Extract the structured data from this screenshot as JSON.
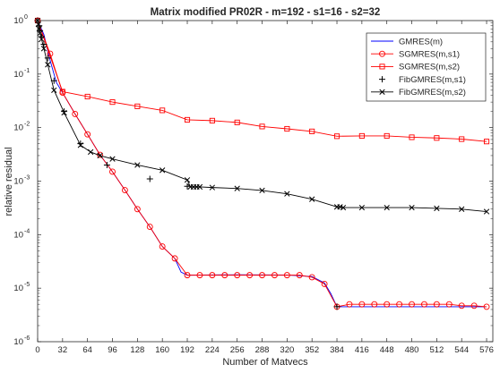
{
  "chart_data": {
    "type": "line",
    "title": "Matrix modified PR02R - m=192 - s1=16 - s2=32",
    "xlabel": "Number of Matvecs",
    "ylabel": "relative residual",
    "xlim": [
      0,
      584
    ],
    "ylim": [
      1e-06,
      1
    ],
    "yscale": "log",
    "x_ticks": [
      0,
      32,
      64,
      96,
      128,
      160,
      192,
      224,
      256,
      288,
      320,
      352,
      384,
      416,
      448,
      480,
      512,
      544,
      576
    ],
    "y_ticks": [
      {
        "value": 1e-06,
        "base": "10",
        "exp": "-6"
      },
      {
        "value": 1e-05,
        "base": "10",
        "exp": "-5"
      },
      {
        "value": 0.0001,
        "base": "10",
        "exp": "-4"
      },
      {
        "value": 0.001,
        "base": "10",
        "exp": "-3"
      },
      {
        "value": 0.01,
        "base": "10",
        "exp": "-2"
      },
      {
        "value": 0.1,
        "base": "10",
        "exp": "-1"
      },
      {
        "value": 1,
        "base": "10",
        "exp": "0"
      }
    ],
    "grid": false,
    "legend_position": "top-right",
    "series": [
      {
        "name": "GMRES(m)",
        "color": "#0000ff",
        "marker": "none",
        "points": [
          [
            0,
            1
          ],
          [
            8,
            0.55
          ],
          [
            16,
            0.18
          ],
          [
            24,
            0.07
          ],
          [
            32,
            0.045
          ],
          [
            48,
            0.018
          ],
          [
            64,
            0.0075
          ],
          [
            80,
            0.0031
          ],
          [
            96,
            0.0015
          ],
          [
            112,
            0.00068
          ],
          [
            128,
            0.0003
          ],
          [
            144,
            0.00014
          ],
          [
            160,
            6e-05
          ],
          [
            176,
            3.6e-05
          ],
          [
            184,
            2e-05
          ],
          [
            192,
            1.75e-05
          ],
          [
            256,
            1.78e-05
          ],
          [
            320,
            1.76e-05
          ],
          [
            352,
            1.65e-05
          ],
          [
            368,
            1.25e-05
          ],
          [
            376,
            8e-06
          ],
          [
            384,
            4.5e-06
          ],
          [
            576,
            4.5e-06
          ]
        ]
      },
      {
        "name": "SGMRES(m,s1)",
        "color": "#ff0000",
        "marker": "circle",
        "points": [
          [
            0,
            1
          ],
          [
            16,
            0.24
          ],
          [
            32,
            0.045
          ],
          [
            48,
            0.018
          ],
          [
            64,
            0.0075
          ],
          [
            80,
            0.0031
          ],
          [
            96,
            0.0015
          ],
          [
            112,
            0.00068
          ],
          [
            128,
            0.0003
          ],
          [
            144,
            0.00014
          ],
          [
            160,
            6e-05
          ],
          [
            176,
            3.6e-05
          ],
          [
            192,
            1.75e-05
          ],
          [
            208,
            1.75e-05
          ],
          [
            224,
            1.75e-05
          ],
          [
            240,
            1.75e-05
          ],
          [
            256,
            1.75e-05
          ],
          [
            272,
            1.75e-05
          ],
          [
            288,
            1.75e-05
          ],
          [
            304,
            1.75e-05
          ],
          [
            320,
            1.75e-05
          ],
          [
            336,
            1.75e-05
          ],
          [
            352,
            1.6e-05
          ],
          [
            368,
            1.2e-05
          ],
          [
            384,
            4.5e-06
          ],
          [
            400,
            5e-06
          ],
          [
            416,
            5e-06
          ],
          [
            432,
            5e-06
          ],
          [
            448,
            5e-06
          ],
          [
            464,
            5e-06
          ],
          [
            480,
            5e-06
          ],
          [
            496,
            5e-06
          ],
          [
            512,
            5e-06
          ],
          [
            528,
            5e-06
          ],
          [
            544,
            4.7e-06
          ],
          [
            560,
            4.7e-06
          ],
          [
            576,
            4.5e-06
          ]
        ]
      },
      {
        "name": "SGMRES(m,s2)",
        "color": "#ff0000",
        "marker": "square",
        "points": [
          [
            0,
            1
          ],
          [
            32,
            0.047
          ],
          [
            64,
            0.038
          ],
          [
            96,
            0.03
          ],
          [
            128,
            0.025
          ],
          [
            160,
            0.021
          ],
          [
            192,
            0.014
          ],
          [
            224,
            0.0135
          ],
          [
            256,
            0.0125
          ],
          [
            288,
            0.0105
          ],
          [
            320,
            0.0095
          ],
          [
            352,
            0.0085
          ],
          [
            384,
            0.0069
          ],
          [
            416,
            0.007
          ],
          [
            448,
            0.007
          ],
          [
            480,
            0.0066
          ],
          [
            512,
            0.0064
          ],
          [
            544,
            0.0061
          ],
          [
            576,
            0.0055
          ]
        ]
      },
      {
        "name": "FibGMRES(m,s1)",
        "color": "#000000",
        "marker": "plus",
        "points": [
          [
            0,
            1
          ],
          [
            2,
            0.8
          ],
          [
            3,
            0.65
          ],
          [
            5,
            0.5
          ],
          [
            8,
            0.36
          ],
          [
            13,
            0.2
          ],
          [
            21,
            0.075
          ],
          [
            34,
            0.02
          ],
          [
            55,
            0.005
          ],
          [
            89,
            0.002
          ],
          [
            144,
            0.0011
          ],
          [
            192,
            0.0008
          ],
          [
            384,
            4.5e-06
          ]
        ]
      },
      {
        "name": "FibGMRES(m,s2)",
        "color": "#000000",
        "marker": "cross",
        "points": [
          [
            0,
            1
          ],
          [
            1,
            0.85
          ],
          [
            2,
            0.7
          ],
          [
            3,
            0.58
          ],
          [
            5,
            0.45
          ],
          [
            8,
            0.3
          ],
          [
            13,
            0.15
          ],
          [
            21,
            0.05
          ],
          [
            34,
            0.019
          ],
          [
            55,
            0.0047
          ],
          [
            68,
            0.0035
          ],
          [
            80,
            0.003
          ],
          [
            96,
            0.0026
          ],
          [
            128,
            0.002
          ],
          [
            160,
            0.0016
          ],
          [
            192,
            0.00105
          ],
          [
            196,
            0.00078
          ],
          [
            200,
            0.00078
          ],
          [
            204,
            0.00078
          ],
          [
            208,
            0.00078
          ],
          [
            224,
            0.00076
          ],
          [
            256,
            0.00073
          ],
          [
            288,
            0.00067
          ],
          [
            320,
            0.00058
          ],
          [
            352,
            0.00046
          ],
          [
            384,
            0.00033
          ],
          [
            388,
            0.00033
          ],
          [
            392,
            0.00032
          ],
          [
            416,
            0.00032
          ],
          [
            448,
            0.00032
          ],
          [
            480,
            0.00032
          ],
          [
            512,
            0.00031
          ],
          [
            544,
            0.0003
          ],
          [
            576,
            0.00027
          ]
        ]
      }
    ]
  }
}
